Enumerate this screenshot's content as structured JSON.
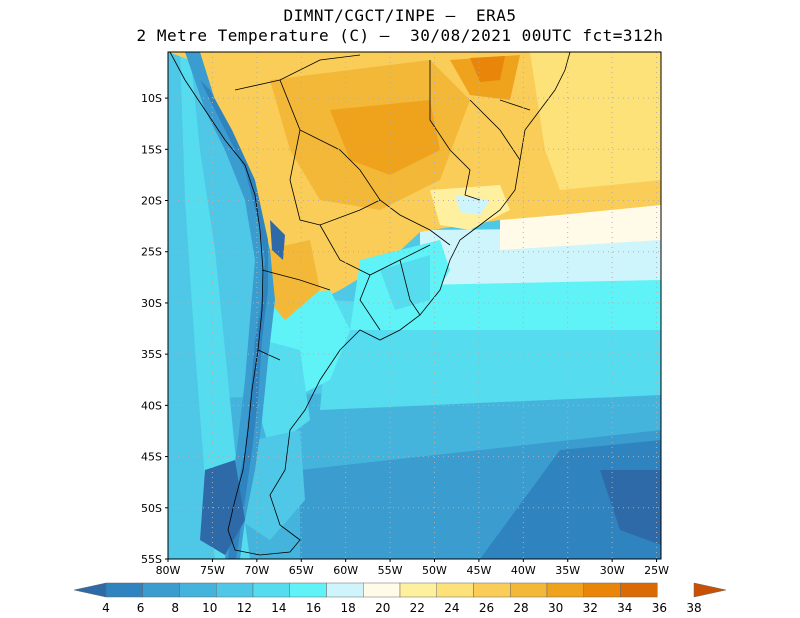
{
  "header": {
    "line1": "DIMNT/CGCT/INPE –  ERA5",
    "line2": "2 Metre Temperature (C) –  30/08/2021 00UTC fct=312h"
  },
  "axes": {
    "lat_labels": [
      "10S",
      "15S",
      "20S",
      "25S",
      "30S",
      "35S",
      "40S",
      "45S",
      "50S",
      "55S"
    ],
    "lon_labels": [
      "80W",
      "75W",
      "70W",
      "65W",
      "60W",
      "55W",
      "50W",
      "45W",
      "40W",
      "35W",
      "30W",
      "25W"
    ],
    "lat_values": [
      -10,
      -15,
      -20,
      -25,
      -30,
      -35,
      -40,
      -45,
      -50,
      -55
    ],
    "lon_values": [
      -80,
      -75,
      -70,
      -65,
      -60,
      -55,
      -50,
      -45,
      -40,
      -35,
      -30,
      -25
    ],
    "lat_range": [
      -55,
      -5.5
    ],
    "lon_range": [
      -80,
      -24.5
    ],
    "grid": "dotted"
  },
  "colorbar": {
    "labels": [
      "4",
      "6",
      "8",
      "10",
      "12",
      "14",
      "16",
      "18",
      "20",
      "22",
      "24",
      "26",
      "28",
      "30",
      "32",
      "34",
      "36",
      "38"
    ],
    "colors": [
      "#2f6aa8",
      "#2f84c0",
      "#3a9ccf",
      "#45b4dc",
      "#4ec8e6",
      "#55dcee",
      "#5ff2f7",
      "#cdf5fb",
      "#fffbe8",
      "#fff0a0",
      "#fde27a",
      "#f9cd57",
      "#f3b838",
      "#efa21c",
      "#e98508",
      "#dc6a04",
      "#c95002"
    ]
  },
  "colors": {
    "land_border": "#000000",
    "grid": "#b0b0b0"
  }
}
